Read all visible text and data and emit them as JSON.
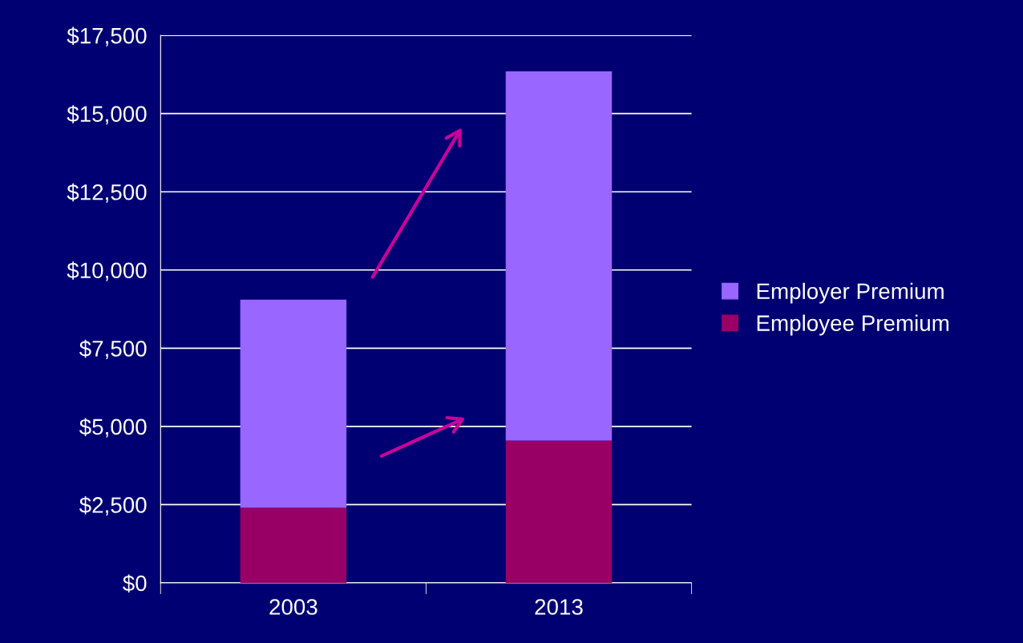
{
  "chart_data": {
    "type": "bar",
    "stacked": true,
    "categories": [
      "2003",
      "2013"
    ],
    "series": [
      {
        "name": "Employee Premium",
        "color": "#990066",
        "values": [
          2400,
          4550
        ]
      },
      {
        "name": "Employer Premium",
        "color": "#9966ff",
        "values": [
          6650,
          11800
        ]
      }
    ],
    "ylim": [
      0,
      17500
    ],
    "yticks": [
      {
        "value": 0,
        "label": "$0"
      },
      {
        "value": 2500,
        "label": "$2,500"
      },
      {
        "value": 5000,
        "label": "$5,000"
      },
      {
        "value": 7500,
        "label": "$7,500"
      },
      {
        "value": 10000,
        "label": "$10,000"
      },
      {
        "value": 12500,
        "label": "$12,500"
      },
      {
        "value": 15000,
        "label": "$15,000"
      },
      {
        "value": 17500,
        "label": "$17,500"
      }
    ],
    "grid": "y",
    "legend": "right"
  }
}
